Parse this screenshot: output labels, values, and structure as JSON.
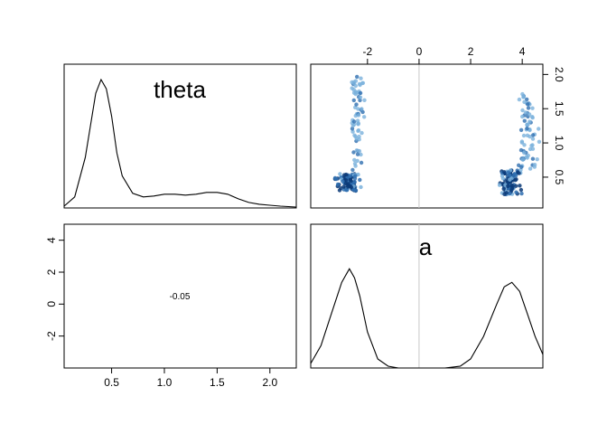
{
  "chart_data": [
    {
      "type": "density",
      "panel": "theta (diagonal)",
      "title": "theta",
      "xlim": [
        0.05,
        2.25
      ],
      "x": [
        0.05,
        0.15,
        0.25,
        0.3,
        0.35,
        0.4,
        0.45,
        0.5,
        0.55,
        0.6,
        0.7,
        0.8,
        0.9,
        1.0,
        1.1,
        1.2,
        1.3,
        1.4,
        1.5,
        1.6,
        1.7,
        1.8,
        1.9,
        2.0,
        2.1,
        2.25
      ],
      "y": [
        0.02,
        0.12,
        0.55,
        0.9,
        1.25,
        1.4,
        1.3,
        1.0,
        0.6,
        0.35,
        0.16,
        0.12,
        0.13,
        0.15,
        0.15,
        0.14,
        0.15,
        0.17,
        0.17,
        0.15,
        0.1,
        0.06,
        0.04,
        0.03,
        0.02,
        0.01
      ]
    },
    {
      "type": "scatter",
      "panel": "a vs theta (upper)",
      "xlim": [
        -4.2,
        4.8
      ],
      "ylim": [
        0.05,
        2.15
      ],
      "x_ticks": [
        "-2",
        "0",
        "2",
        "4"
      ],
      "y_ticks": [
        "0.5",
        "1.0",
        "1.5",
        "2.0"
      ],
      "zero_line_x": 0,
      "clusters": [
        {
          "x_center": -2.7,
          "x_spread": 0.7,
          "y_min": 0.3,
          "y_max": 0.55,
          "count": 90,
          "shade": "dark"
        },
        {
          "x_center": -2.4,
          "x_spread": 0.35,
          "y_min": 0.6,
          "y_max": 2.0,
          "count": 70,
          "shade": "light"
        },
        {
          "x_center": 3.5,
          "x_spread": 0.55,
          "y_min": 0.25,
          "y_max": 0.6,
          "count": 90,
          "shade": "dark"
        },
        {
          "x_center": 4.2,
          "x_spread": 0.55,
          "y_min": 0.6,
          "y_max": 1.75,
          "count": 70,
          "shade": "light"
        }
      ]
    },
    {
      "type": "text",
      "panel": "theta vs a (lower)",
      "correlation": "-0.05",
      "xlim": [
        0.05,
        2.25
      ],
      "ylim": [
        -4,
        5
      ],
      "x_ticks": [
        "0.5",
        "1.0",
        "1.5",
        "2.0"
      ],
      "y_ticks": [
        "-2",
        "0",
        "2",
        "4"
      ]
    },
    {
      "type": "density",
      "panel": "a (diagonal)",
      "title": "a",
      "xlim": [
        -4.2,
        4.8
      ],
      "zero_line_x": 0,
      "x": [
        -4.2,
        -3.8,
        -3.4,
        -3.0,
        -2.7,
        -2.5,
        -2.3,
        -2.0,
        -1.6,
        -1.2,
        -0.8,
        0.0,
        1.0,
        1.6,
        2.0,
        2.5,
        3.0,
        3.3,
        3.6,
        3.9,
        4.2,
        4.5,
        4.8
      ],
      "y": [
        0.05,
        0.25,
        0.6,
        0.95,
        1.1,
        1.0,
        0.8,
        0.4,
        0.1,
        0.02,
        0.0,
        0.0,
        0.0,
        0.02,
        0.1,
        0.35,
        0.7,
        0.9,
        0.95,
        0.85,
        0.6,
        0.35,
        0.15
      ]
    }
  ],
  "colors": {
    "dark": "#0b3a78",
    "mid": "#2f6fb0",
    "light": "#7ab2dc",
    "zero_line": "#c8c8c8"
  }
}
